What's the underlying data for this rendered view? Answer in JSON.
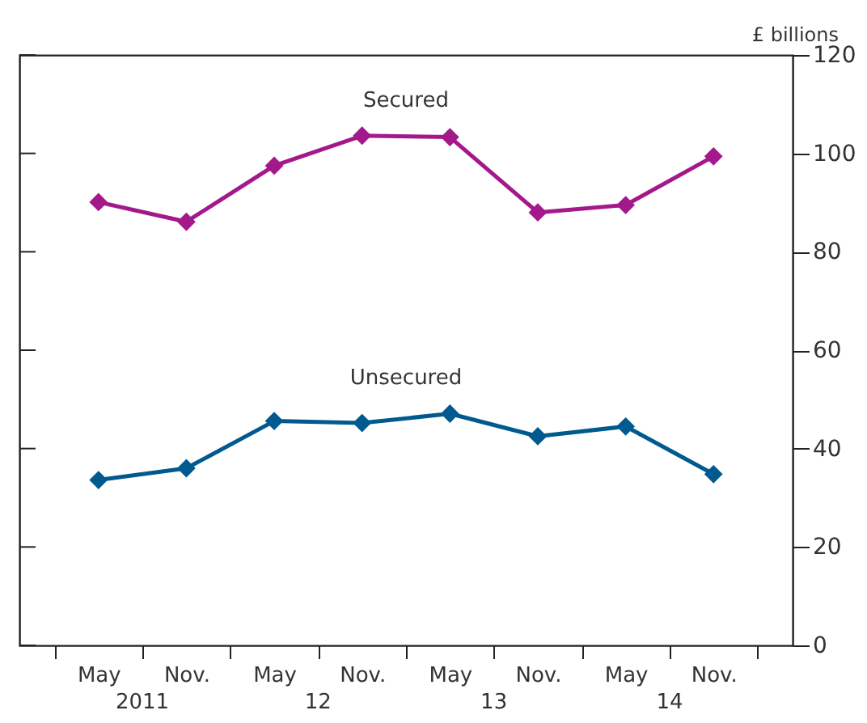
{
  "chart_data": {
    "type": "line",
    "ylabel": "£ billions",
    "categories": [
      "May",
      "Nov.",
      "May",
      "Nov.",
      "May",
      "Nov.",
      "May",
      "Nov."
    ],
    "series": [
      {
        "name": "Secured",
        "color": "#a3198c",
        "values": [
          90.1,
          86.1,
          97.5,
          103.6,
          103.3,
          88.0,
          89.5,
          99.4
        ]
      },
      {
        "name": "Unsecured",
        "color": "#005a8f",
        "values": [
          33.6,
          36.0,
          45.6,
          45.2,
          47.1,
          42.5,
          44.5,
          34.8
        ]
      }
    ],
    "ylim": [
      0,
      120
    ],
    "yticks": [
      0,
      20,
      40,
      60,
      80,
      100,
      120
    ],
    "annotations": [
      "2011",
      "12",
      "13",
      "14"
    ],
    "marker": "diamond",
    "line_style": "solid",
    "grid": false
  }
}
